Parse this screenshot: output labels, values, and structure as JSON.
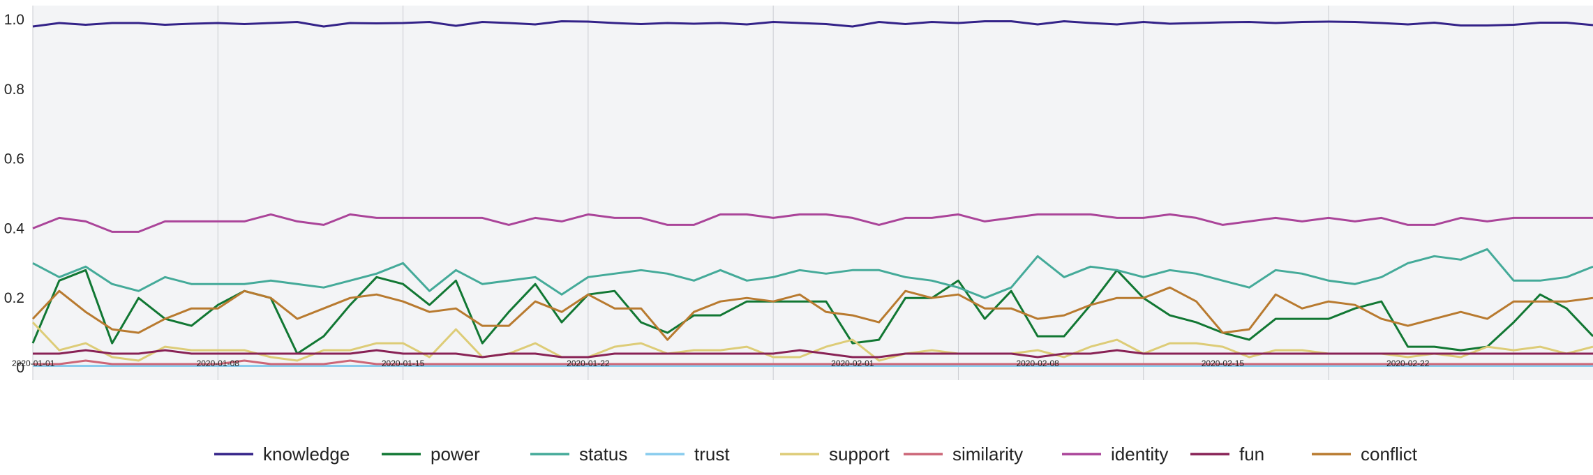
{
  "chart_data": {
    "type": "line",
    "x": [
      "2020-01-01",
      "2020-01-02",
      "2020-01-03",
      "2020-01-04",
      "2020-01-05",
      "2020-01-06",
      "2020-01-07",
      "2020-01-08",
      "2020-01-09",
      "2020-01-10",
      "2020-01-11",
      "2020-01-12",
      "2020-01-13",
      "2020-01-14",
      "2020-01-15",
      "2020-01-16",
      "2020-01-17",
      "2020-01-18",
      "2020-01-19",
      "2020-01-20",
      "2020-01-21",
      "2020-01-22",
      "2020-01-23",
      "2020-01-24",
      "2020-01-25",
      "2020-01-26",
      "2020-01-27",
      "2020-01-28",
      "2020-01-29",
      "2020-01-30",
      "2020-01-31",
      "2020-02-01",
      "2020-02-02",
      "2020-02-03",
      "2020-02-04",
      "2020-02-05",
      "2020-02-06",
      "2020-02-07",
      "2020-02-08",
      "2020-02-09",
      "2020-02-10",
      "2020-02-11",
      "2020-02-12",
      "2020-02-13",
      "2020-02-14",
      "2020-02-15",
      "2020-02-16",
      "2020-02-17",
      "2020-02-18",
      "2020-02-19",
      "2020-02-20",
      "2020-02-21",
      "2020-02-22",
      "2020-02-23",
      "2020-02-24",
      "2020-02-25",
      "2020-02-26",
      "2020-02-27",
      "2020-02-28",
      "2020-02-29"
    ],
    "x_tick_labels": [
      "2020-01-01",
      "2020-01-08",
      "2020-01-15",
      "2020-01-22",
      "2020-02-01",
      "2020-02-08",
      "2020-02-15",
      "2020-02-22"
    ],
    "y_tick_labels": [
      "0",
      "0.2",
      "0.4",
      "0.6",
      "0.8",
      "1.0"
    ],
    "ylim": [
      0,
      1.04
    ],
    "grid": "vertical",
    "legend_position": "bottom",
    "series": [
      {
        "name": "knowledge",
        "color": "#332288",
        "values": [
          0.98,
          0.99,
          0.985,
          0.99,
          0.99,
          0.985,
          0.988,
          0.99,
          0.987,
          0.99,
          0.993,
          0.98,
          0.99,
          0.989,
          0.99,
          0.993,
          0.982,
          0.993,
          0.99,
          0.986,
          0.995,
          0.994,
          0.99,
          0.987,
          0.99,
          0.988,
          0.99,
          0.986,
          0.993,
          0.99,
          0.987,
          0.98,
          0.993,
          0.987,
          0.993,
          0.99,
          0.995,
          0.995,
          0.986,
          0.995,
          0.99,
          0.986,
          0.993,
          0.988,
          0.99,
          0.992,
          0.993,
          0.99,
          0.993,
          0.994,
          0.993,
          0.99,
          0.986,
          0.991,
          0.983,
          0.983,
          0.985,
          0.991,
          0.991,
          0.984
        ]
      },
      {
        "name": "power",
        "color": "#117733",
        "values": [
          0.07,
          0.25,
          0.28,
          0.07,
          0.2,
          0.14,
          0.12,
          0.18,
          0.22,
          0.2,
          0.04,
          0.09,
          0.18,
          0.26,
          0.24,
          0.18,
          0.25,
          0.07,
          0.16,
          0.24,
          0.13,
          0.21,
          0.22,
          0.13,
          0.1,
          0.15,
          0.15,
          0.19,
          0.19,
          0.19,
          0.19,
          0.07,
          0.08,
          0.2,
          0.2,
          0.25,
          0.14,
          0.22,
          0.09,
          0.09,
          0.18,
          0.28,
          0.2,
          0.15,
          0.13,
          0.1,
          0.08,
          0.14,
          0.14,
          0.14,
          0.17,
          0.19,
          0.06,
          0.06,
          0.05,
          0.06,
          0.13,
          0.21,
          0.17,
          0.09
        ]
      },
      {
        "name": "status",
        "color": "#44AA99",
        "values": [
          0.3,
          0.26,
          0.29,
          0.24,
          0.22,
          0.26,
          0.24,
          0.24,
          0.24,
          0.25,
          0.24,
          0.23,
          0.25,
          0.27,
          0.3,
          0.22,
          0.28,
          0.24,
          0.25,
          0.26,
          0.21,
          0.26,
          0.27,
          0.28,
          0.27,
          0.25,
          0.28,
          0.25,
          0.26,
          0.28,
          0.27,
          0.28,
          0.28,
          0.26,
          0.25,
          0.23,
          0.2,
          0.23,
          0.32,
          0.26,
          0.29,
          0.28,
          0.26,
          0.28,
          0.27,
          0.25,
          0.23,
          0.28,
          0.27,
          0.25,
          0.24,
          0.26,
          0.3,
          0.32,
          0.31,
          0.34,
          0.25,
          0.25,
          0.26,
          0.29
        ]
      },
      {
        "name": "trust",
        "color": "#88CCEE",
        "values": [
          0.005,
          0.005,
          0.005,
          0.005,
          0.005,
          0.005,
          0.005,
          0.005,
          0.005,
          0.005,
          0.005,
          0.005,
          0.005,
          0.005,
          0.005,
          0.005,
          0.005,
          0.005,
          0.005,
          0.005,
          0.005,
          0.005,
          0.005,
          0.005,
          0.005,
          0.005,
          0.005,
          0.005,
          0.005,
          0.005,
          0.005,
          0.005,
          0.005,
          0.005,
          0.005,
          0.005,
          0.005,
          0.005,
          0.005,
          0.005,
          0.005,
          0.005,
          0.005,
          0.005,
          0.005,
          0.005,
          0.005,
          0.005,
          0.005,
          0.005,
          0.005,
          0.005,
          0.005,
          0.005,
          0.005,
          0.005,
          0.005,
          0.005,
          0.005,
          0.005
        ]
      },
      {
        "name": "support",
        "color": "#DDCC77",
        "values": [
          0.13,
          0.05,
          0.07,
          0.03,
          0.02,
          0.06,
          0.05,
          0.05,
          0.05,
          0.03,
          0.02,
          0.05,
          0.05,
          0.07,
          0.07,
          0.03,
          0.11,
          0.03,
          0.04,
          0.07,
          0.03,
          0.03,
          0.06,
          0.07,
          0.04,
          0.05,
          0.05,
          0.06,
          0.03,
          0.03,
          0.06,
          0.08,
          0.02,
          0.04,
          0.05,
          0.04,
          0.04,
          0.04,
          0.05,
          0.03,
          0.06,
          0.08,
          0.04,
          0.07,
          0.07,
          0.06,
          0.03,
          0.05,
          0.05,
          0.04,
          0.04,
          0.04,
          0.03,
          0.04,
          0.03,
          0.06,
          0.05,
          0.06,
          0.04,
          0.06
        ]
      },
      {
        "name": "similarity",
        "color": "#CC6677",
        "values": [
          0.01,
          0.01,
          0.02,
          0.01,
          0.01,
          0.01,
          0.01,
          0.01,
          0.02,
          0.01,
          0.01,
          0.01,
          0.02,
          0.01,
          0.01,
          0.01,
          0.01,
          0.01,
          0.01,
          0.01,
          0.01,
          0.01,
          0.01,
          0.01,
          0.01,
          0.01,
          0.01,
          0.01,
          0.01,
          0.01,
          0.01,
          0.01,
          0.01,
          0.01,
          0.01,
          0.01,
          0.01,
          0.01,
          0.01,
          0.01,
          0.01,
          0.01,
          0.01,
          0.01,
          0.01,
          0.01,
          0.01,
          0.01,
          0.01,
          0.01,
          0.01,
          0.01,
          0.01,
          0.01,
          0.01,
          0.01,
          0.01,
          0.01,
          0.01,
          0.01
        ]
      },
      {
        "name": "identity",
        "color": "#AA4499",
        "values": [
          0.4,
          0.43,
          0.42,
          0.39,
          0.39,
          0.42,
          0.42,
          0.42,
          0.42,
          0.44,
          0.42,
          0.41,
          0.44,
          0.43,
          0.43,
          0.43,
          0.43,
          0.43,
          0.41,
          0.43,
          0.42,
          0.44,
          0.43,
          0.43,
          0.41,
          0.41,
          0.44,
          0.44,
          0.43,
          0.44,
          0.44,
          0.43,
          0.41,
          0.43,
          0.43,
          0.44,
          0.42,
          0.43,
          0.44,
          0.44,
          0.44,
          0.43,
          0.43,
          0.44,
          0.43,
          0.41,
          0.42,
          0.43,
          0.42,
          0.43,
          0.42,
          0.43,
          0.41,
          0.41,
          0.43,
          0.42,
          0.43,
          0.43,
          0.43,
          0.43
        ]
      },
      {
        "name": "fun",
        "color": "#882255",
        "values": [
          0.04,
          0.04,
          0.05,
          0.04,
          0.04,
          0.05,
          0.04,
          0.04,
          0.04,
          0.04,
          0.04,
          0.04,
          0.04,
          0.05,
          0.04,
          0.04,
          0.04,
          0.03,
          0.04,
          0.04,
          0.03,
          0.03,
          0.04,
          0.04,
          0.04,
          0.04,
          0.04,
          0.04,
          0.04,
          0.05,
          0.04,
          0.03,
          0.03,
          0.04,
          0.04,
          0.04,
          0.04,
          0.04,
          0.03,
          0.04,
          0.04,
          0.05,
          0.04,
          0.04,
          0.04,
          0.04,
          0.04,
          0.04,
          0.04,
          0.04,
          0.04,
          0.04,
          0.04,
          0.04,
          0.04,
          0.04,
          0.04,
          0.04,
          0.04,
          0.04
        ]
      },
      {
        "name": "conflict",
        "color": "#B87A2F",
        "values": [
          0.14,
          0.22,
          0.16,
          0.11,
          0.1,
          0.14,
          0.17,
          0.17,
          0.22,
          0.2,
          0.14,
          0.17,
          0.2,
          0.21,
          0.19,
          0.16,
          0.17,
          0.12,
          0.12,
          0.19,
          0.16,
          0.21,
          0.17,
          0.17,
          0.08,
          0.16,
          0.19,
          0.2,
          0.19,
          0.21,
          0.16,
          0.15,
          0.13,
          0.22,
          0.2,
          0.21,
          0.17,
          0.17,
          0.14,
          0.15,
          0.18,
          0.2,
          0.2,
          0.23,
          0.19,
          0.1,
          0.11,
          0.21,
          0.17,
          0.19,
          0.18,
          0.14,
          0.12,
          0.14,
          0.16,
          0.14,
          0.19,
          0.19,
          0.19,
          0.2
        ]
      }
    ]
  }
}
